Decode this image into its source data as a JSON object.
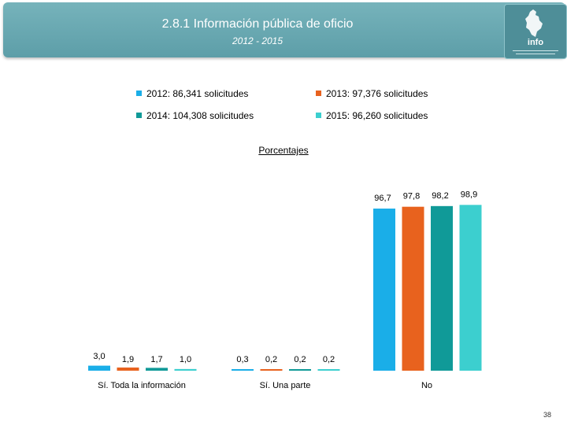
{
  "header": {
    "title": "2.8.1 Información pública de oficio",
    "subtitle": "2012 - 2015",
    "logo_text": "info"
  },
  "chart_data": {
    "type": "bar",
    "title": "Porcentajes",
    "categories": [
      "Sí. Toda la información",
      "Sí. Una parte",
      "No"
    ],
    "series": [
      {
        "name": "2012: 86,341 solicitudes",
        "color": "#1aaee8",
        "values": [
          3.0,
          0.3,
          96.7
        ],
        "labels": [
          "3,0",
          "0,3",
          "96,7"
        ]
      },
      {
        "name": "2013: 97,376 solicitudes",
        "color": "#e8621e",
        "values": [
          1.9,
          0.2,
          97.8
        ],
        "labels": [
          "1,9",
          "0,2",
          "97,8"
        ]
      },
      {
        "name": "2014: 104,308 solicitudes",
        "color": "#109a98",
        "values": [
          1.7,
          0.2,
          98.2
        ],
        "labels": [
          "1,7",
          "0,2",
          "98,2"
        ]
      },
      {
        "name": "2015: 96,260 solicitudes",
        "color": "#3ccfcf",
        "values": [
          1.0,
          0.2,
          98.9
        ],
        "labels": [
          "1,0",
          "0,2",
          "98,9"
        ]
      }
    ],
    "ylim": [
      0,
      100
    ],
    "grid": false,
    "legend_position": "top"
  },
  "footer": {
    "page_number": "38"
  }
}
